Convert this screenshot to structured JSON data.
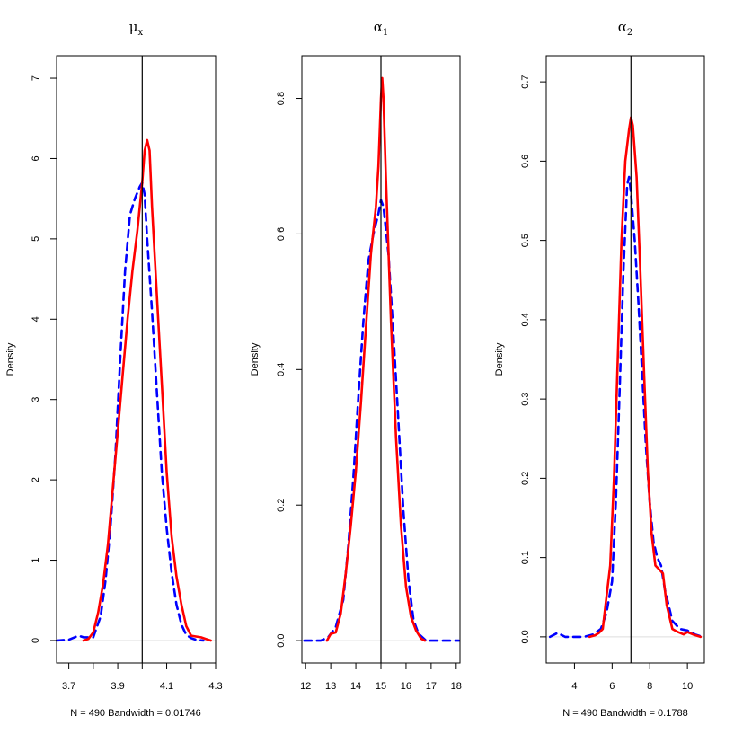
{
  "chart_data": [
    {
      "type": "line",
      "title": "μ",
      "title_subscript": "x",
      "ylabel": "Density",
      "xlabel": "N = 490   Bandwidth = 0.01746",
      "xlim": [
        3.65,
        4.3
      ],
      "ylim": [
        -0.28,
        7.28
      ],
      "xticks": [
        3.7,
        3.8,
        3.9,
        4.0,
        4.1,
        4.2,
        4.3
      ],
      "xtick_labels": [
        "3.7",
        "",
        "3.9",
        "",
        "4.1",
        "",
        "4.3"
      ],
      "yticks": [
        0,
        1,
        2,
        3,
        4,
        5,
        6,
        7
      ],
      "ytick_labels": [
        "0",
        "1",
        "2",
        "3",
        "4",
        "5",
        "6",
        "7"
      ],
      "reference_x": 4.0,
      "baseline": 0,
      "series": [
        {
          "style": "dashed",
          "color": "#0000ff",
          "x": [
            3.65,
            3.7,
            3.74,
            3.76,
            3.8,
            3.83,
            3.85,
            3.87,
            3.89,
            3.91,
            3.93,
            3.95,
            3.97,
            3.99,
            4.0,
            4.01,
            4.02,
            4.04,
            4.06,
            4.08,
            4.1,
            4.12,
            4.14,
            4.16,
            4.18,
            4.2,
            4.22,
            4.25
          ],
          "y": [
            0,
            0.01,
            0.06,
            0.04,
            0.04,
            0.3,
            0.75,
            1.4,
            2.3,
            3.5,
            4.6,
            5.3,
            5.5,
            5.65,
            5.7,
            5.55,
            5.0,
            4.1,
            3.1,
            2.1,
            1.4,
            0.85,
            0.45,
            0.2,
            0.07,
            0.03,
            0.01,
            0
          ]
        },
        {
          "style": "solid",
          "color": "#ff0000",
          "x": [
            3.76,
            3.78,
            3.8,
            3.82,
            3.84,
            3.86,
            3.88,
            3.9,
            3.92,
            3.94,
            3.96,
            3.98,
            4.0,
            4.01,
            4.02,
            4.03,
            4.04,
            4.06,
            4.08,
            4.1,
            4.12,
            4.14,
            4.16,
            4.18,
            4.2,
            4.22,
            4.24,
            4.26,
            4.28
          ],
          "y": [
            0,
            0.02,
            0.1,
            0.35,
            0.7,
            1.2,
            1.9,
            2.6,
            3.3,
            4.0,
            4.6,
            5.1,
            5.7,
            6.1,
            6.23,
            6.1,
            5.4,
            4.3,
            3.2,
            2.1,
            1.3,
            0.8,
            0.45,
            0.18,
            0.06,
            0.05,
            0.04,
            0.02,
            0
          ]
        }
      ]
    },
    {
      "type": "line",
      "title": "α",
      "title_subscript": "1",
      "ylabel": "Density",
      "xlabel": "",
      "xlim": [
        11.85,
        18.15
      ],
      "ylim": [
        -0.033,
        0.863
      ],
      "xticks": [
        12,
        13,
        14,
        15,
        16,
        17,
        18
      ],
      "xtick_labels": [
        "12",
        "13",
        "14",
        "15",
        "16",
        "17",
        "18"
      ],
      "yticks": [
        0,
        0.2,
        0.4,
        0.6,
        0.8
      ],
      "ytick_labels": [
        "0.0",
        "0.2",
        "0.4",
        "0.6",
        "0.8"
      ],
      "reference_x": 15,
      "baseline": 0,
      "series": [
        {
          "style": "dashed",
          "color": "#0000ff",
          "x": [
            11.95,
            12.3,
            12.6,
            12.9,
            13.2,
            13.5,
            13.7,
            13.9,
            14.1,
            14.3,
            14.5,
            14.7,
            14.9,
            15.0,
            15.1,
            15.3,
            15.5,
            15.7,
            15.9,
            16.1,
            16.3,
            16.5,
            16.8,
            17.2,
            18.1
          ],
          "y": [
            0,
            0,
            0,
            0.005,
            0.02,
            0.06,
            0.14,
            0.24,
            0.36,
            0.47,
            0.56,
            0.6,
            0.63,
            0.65,
            0.64,
            0.57,
            0.45,
            0.32,
            0.19,
            0.09,
            0.03,
            0.01,
            0,
            0,
            0
          ]
        },
        {
          "style": "solid",
          "color": "#ff0000",
          "x": [
            12.85,
            13.0,
            13.2,
            13.4,
            13.6,
            13.8,
            14.0,
            14.2,
            14.4,
            14.6,
            14.8,
            14.9,
            15.0,
            15.05,
            15.1,
            15.2,
            15.4,
            15.6,
            15.8,
            16.0,
            16.2,
            16.4,
            16.6,
            16.75
          ],
          "y": [
            0,
            0.01,
            0.012,
            0.04,
            0.1,
            0.17,
            0.25,
            0.35,
            0.46,
            0.57,
            0.64,
            0.7,
            0.8,
            0.83,
            0.8,
            0.68,
            0.47,
            0.3,
            0.17,
            0.08,
            0.035,
            0.015,
            0.003,
            0
          ]
        }
      ]
    },
    {
      "type": "line",
      "title": "α",
      "title_subscript": "2",
      "ylabel": "Density",
      "xlabel": "N = 490   Bandwidth = 0.1788",
      "xlim": [
        2.5,
        10.9
      ],
      "ylim": [
        -0.033,
        0.733
      ],
      "xticks": [
        4,
        6,
        8,
        10
      ],
      "xtick_labels": [
        "4",
        "6",
        "8",
        "10"
      ],
      "yticks": [
        0,
        0.1,
        0.2,
        0.3,
        0.4,
        0.5,
        0.6,
        0.7
      ],
      "ytick_labels": [
        "0.0",
        "0.1",
        "0.2",
        "0.3",
        "0.4",
        "0.5",
        "0.6",
        "0.7"
      ],
      "reference_x": 7,
      "baseline": 0,
      "series": [
        {
          "style": "dashed",
          "color": "#0000ff",
          "x": [
            2.7,
            3.1,
            3.5,
            4.0,
            4.5,
            5.0,
            5.4,
            5.7,
            6.0,
            6.2,
            6.4,
            6.6,
            6.8,
            6.9,
            7.0,
            7.2,
            7.4,
            7.6,
            7.8,
            8.0,
            8.2,
            8.4,
            8.6,
            8.8,
            9.2,
            9.6,
            10.0,
            10.4,
            10.8
          ],
          "y": [
            0,
            0.005,
            0,
            0,
            0,
            0.003,
            0.01,
            0.03,
            0.07,
            0.17,
            0.31,
            0.46,
            0.57,
            0.58,
            0.56,
            0.5,
            0.42,
            0.33,
            0.24,
            0.17,
            0.12,
            0.1,
            0.09,
            0.06,
            0.02,
            0.01,
            0.008,
            0.003,
            0
          ]
        },
        {
          "style": "solid",
          "color": "#ff0000",
          "x": [
            4.8,
            5.1,
            5.3,
            5.5,
            5.7,
            5.9,
            6.1,
            6.3,
            6.5,
            6.7,
            6.9,
            7.0,
            7.1,
            7.3,
            7.5,
            7.7,
            7.9,
            8.1,
            8.3,
            8.5,
            8.7,
            8.9,
            9.2,
            9.5,
            9.8,
            10.0,
            10.3,
            10.7
          ],
          "y": [
            0,
            0.002,
            0.005,
            0.01,
            0.05,
            0.09,
            0.2,
            0.35,
            0.5,
            0.6,
            0.64,
            0.655,
            0.645,
            0.58,
            0.46,
            0.33,
            0.21,
            0.13,
            0.09,
            0.085,
            0.08,
            0.04,
            0.01,
            0.006,
            0.003,
            0.006,
            0.003,
            0
          ]
        }
      ]
    }
  ]
}
